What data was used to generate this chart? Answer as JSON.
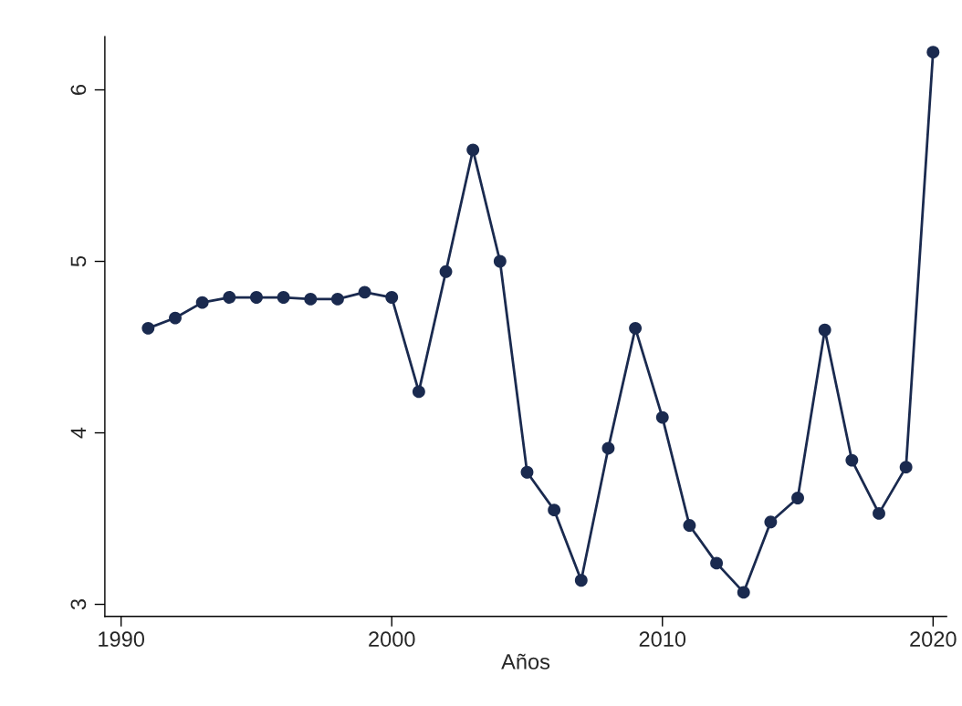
{
  "chart_data": {
    "type": "line",
    "xlabel": "Años",
    "x": [
      1991,
      1992,
      1993,
      1994,
      1995,
      1996,
      1997,
      1998,
      1999,
      2000,
      2001,
      2002,
      2003,
      2004,
      2005,
      2006,
      2007,
      2008,
      2009,
      2010,
      2011,
      2012,
      2013,
      2014,
      2015,
      2016,
      2017,
      2018,
      2019,
      2020
    ],
    "series": [
      {
        "color": "#1a2a4f",
        "values": [
          4.61,
          4.67,
          4.76,
          4.79,
          4.79,
          4.79,
          4.78,
          4.78,
          4.82,
          4.79,
          4.24,
          4.94,
          5.65,
          5.0,
          3.77,
          3.55,
          3.14,
          3.91,
          4.61,
          4.09,
          3.46,
          3.24,
          3.07,
          3.48,
          3.62,
          4.6,
          3.84,
          3.53,
          3.8,
          6.22
        ]
      }
    ],
    "xlim": [
      1989.4,
      2020.5
    ],
    "xticks": [
      1990,
      2000,
      2010,
      2020
    ],
    "ylim": [
      2.93,
      6.31
    ],
    "yticks": [
      3,
      4,
      5,
      6
    ],
    "marker": "circle",
    "line_style": "solid",
    "grid": false,
    "legend": false
  }
}
